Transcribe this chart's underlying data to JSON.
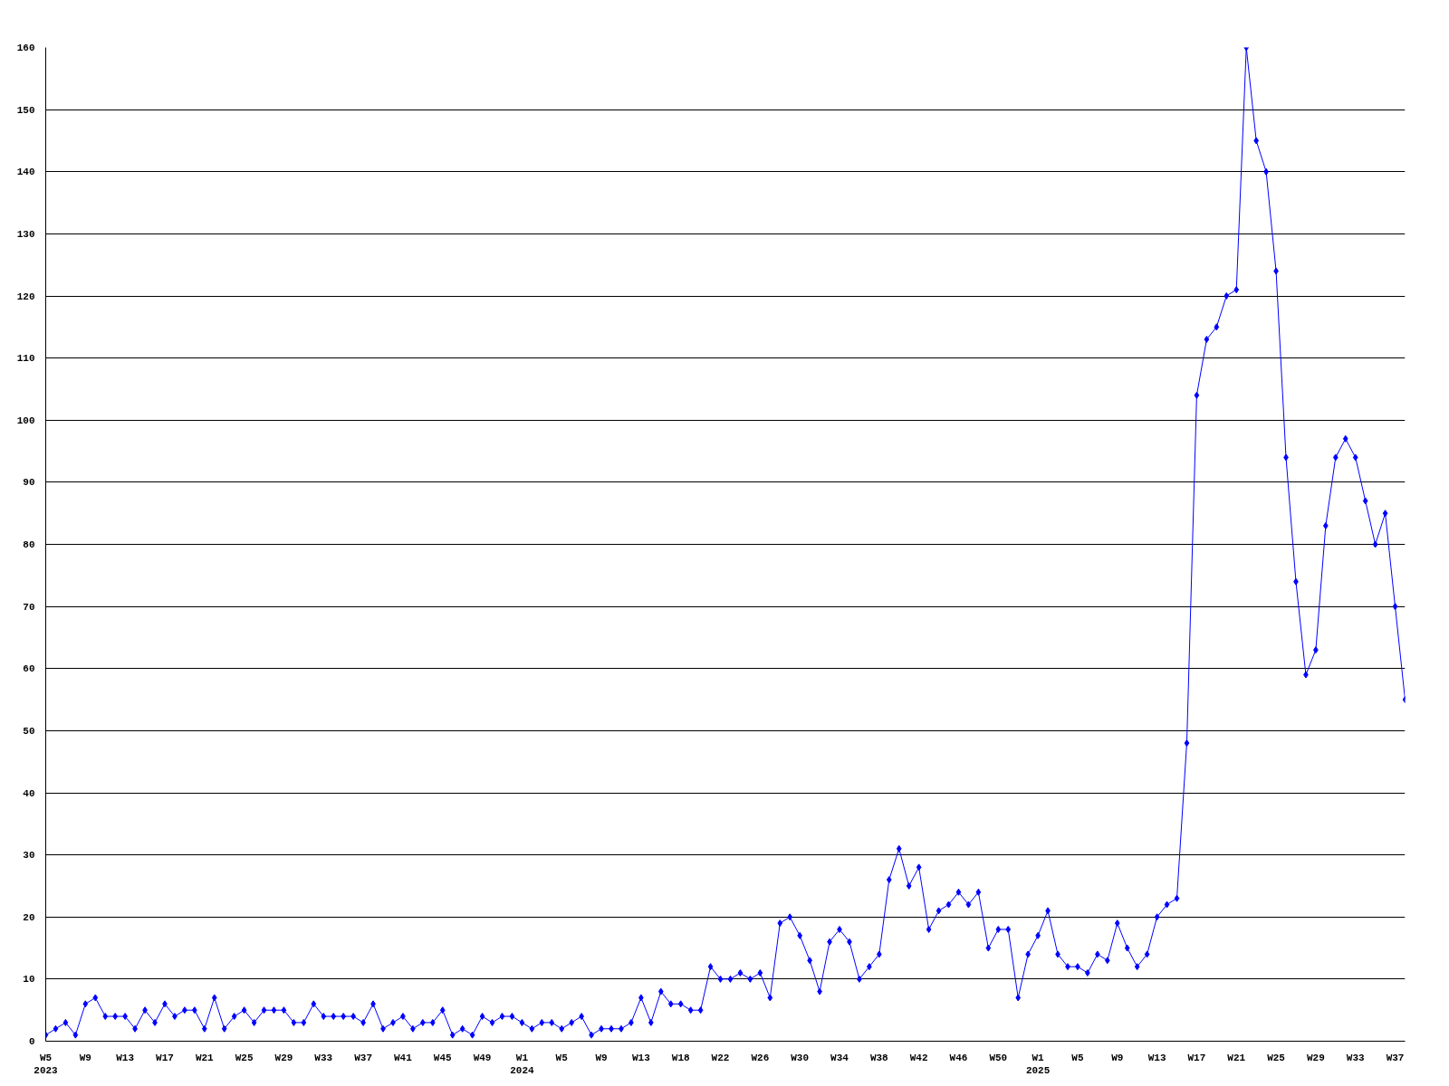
{
  "chart_data": {
    "type": "line",
    "categories": [
      "W5\n2023",
      null,
      null,
      null,
      "W9",
      null,
      null,
      null,
      "W13",
      null,
      null,
      null,
      "W17",
      null,
      null,
      null,
      "W21",
      null,
      null,
      null,
      "W25",
      null,
      null,
      null,
      "W29",
      null,
      null,
      null,
      "W33",
      null,
      null,
      null,
      "W37",
      null,
      null,
      null,
      "W41",
      null,
      null,
      null,
      "W45",
      null,
      null,
      null,
      "W49",
      null,
      null,
      null,
      "W1\n2024",
      null,
      null,
      null,
      "W5",
      null,
      null,
      null,
      "W9",
      null,
      null,
      null,
      "W13",
      null,
      null,
      null,
      "W18",
      null,
      null,
      null,
      "W22",
      null,
      null,
      null,
      "W26",
      null,
      null,
      null,
      "W30",
      null,
      null,
      null,
      "W34",
      null,
      null,
      null,
      "W38",
      null,
      null,
      null,
      "W42",
      null,
      null,
      null,
      "W46",
      null,
      null,
      null,
      "W50",
      null,
      null,
      null,
      "W1\n2025",
      null,
      null,
      null,
      "W5",
      null,
      null,
      null,
      "W9",
      null,
      null,
      null,
      "W13",
      null,
      null,
      null,
      "W17",
      null,
      null,
      null,
      "W21",
      null,
      null,
      null,
      "W25",
      null,
      null,
      null,
      "W29",
      null,
      null,
      null,
      "W33",
      null,
      null,
      null,
      "W37",
      null
    ],
    "series": [
      {
        "color": "#0000ff",
        "values": [
          1,
          2,
          3,
          1,
          6,
          7,
          4,
          4,
          4,
          2,
          5,
          3,
          6,
          4,
          5,
          5,
          2,
          7,
          2,
          4,
          5,
          3,
          5,
          5,
          5,
          3,
          3,
          6,
          4,
          4,
          4,
          4,
          3,
          6,
          2,
          3,
          4,
          2,
          3,
          3,
          5,
          1,
          2,
          1,
          4,
          3,
          4,
          4,
          3,
          2,
          3,
          3,
          2,
          3,
          4,
          1,
          2,
          2,
          2,
          3,
          7,
          3,
          8,
          6,
          6,
          5,
          5,
          12,
          10,
          10,
          11,
          10,
          11,
          7,
          19,
          20,
          17,
          13,
          8,
          16,
          18,
          16,
          10,
          12,
          14,
          26,
          31,
          25,
          28,
          18,
          21,
          22,
          24,
          22,
          24,
          15,
          18,
          18,
          7,
          14,
          17,
          21,
          14,
          12,
          12,
          11,
          14,
          13,
          19,
          15,
          12,
          14,
          20,
          22,
          23,
          48,
          104,
          113,
          115,
          120,
          121,
          160,
          145,
          140,
          124,
          94,
          74,
          59,
          63,
          83,
          94,
          97,
          94,
          87,
          80,
          85,
          70,
          55
        ]
      }
    ],
    "ylim": [
      0,
      160
    ],
    "yticks": [
      0,
      10,
      20,
      30,
      40,
      50,
      60,
      70,
      80,
      90,
      100,
      110,
      120,
      130,
      140,
      150,
      160
    ],
    "grid": "y",
    "marker": "diamond"
  }
}
